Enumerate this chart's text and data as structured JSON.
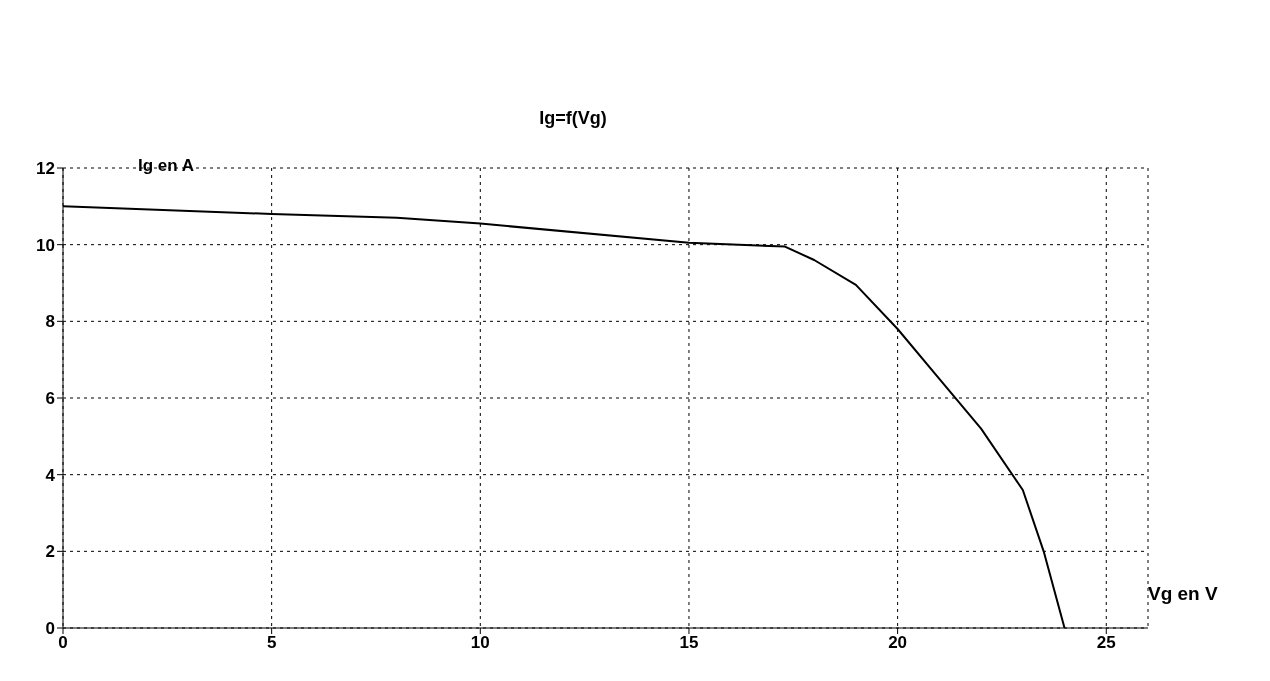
{
  "chart_data": {
    "type": "line",
    "title": "Ig=f(Vg)",
    "xlabel": "Vg en V",
    "ylabel": "Ig en A",
    "x": [
      0,
      5,
      8,
      10,
      15,
      17.3,
      18,
      19,
      20,
      21,
      22,
      23,
      23.5,
      24
    ],
    "series": [
      {
        "color": "#000000",
        "values": [
          11,
          10.8,
          10.7,
          10.55,
          10.05,
          9.95,
          9.6,
          8.95,
          7.8,
          6.5,
          5.2,
          3.6,
          2.0,
          0
        ]
      }
    ],
    "xlim": [
      0,
      26
    ],
    "xticks": [
      0,
      5,
      10,
      15,
      20,
      25
    ],
    "ylim": [
      0,
      12
    ],
    "yticks": [
      0,
      2,
      4,
      6,
      8,
      10,
      12
    ],
    "grid": true,
    "marker": "none",
    "line_style": "solid"
  }
}
